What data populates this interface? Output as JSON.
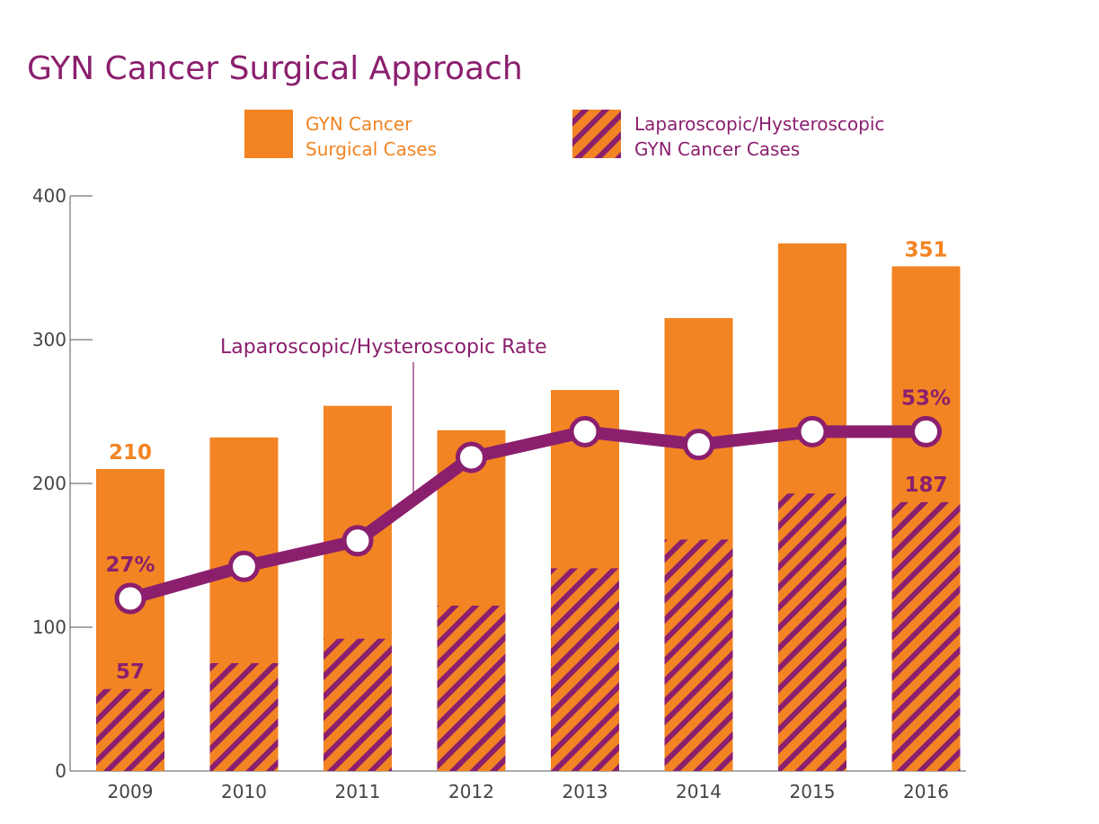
{
  "title": "GYN Cancer Surgical Approach",
  "colors": {
    "orange": "#F28423",
    "purple": "#8B1F6E",
    "axis": "#555555",
    "tick_text": "#444444",
    "marker_fill": "#ffffff"
  },
  "legend": {
    "total": {
      "line1": "GYN Cancer",
      "line2": "Surgical Cases"
    },
    "lap": {
      "line1": "Laparoscopic/Hysteroscopic",
      "line2": "GYN Cancer Cases"
    }
  },
  "rate_annotation": "Laparoscopic/Hysteroscopic Rate",
  "chart_data": {
    "type": "bar",
    "categories": [
      "2009",
      "2010",
      "2011",
      "2012",
      "2013",
      "2014",
      "2015",
      "2016"
    ],
    "ylim": [
      0,
      400
    ],
    "yticks": [
      0,
      100,
      200,
      300,
      400
    ],
    "grid": false,
    "legend_position": "top",
    "series": [
      {
        "name": "GYN Cancer Surgical Cases",
        "values": [
          210,
          232,
          254,
          237,
          265,
          315,
          367,
          351
        ]
      },
      {
        "name": "Laparoscopic/Hysteroscopic GYN Cancer Cases",
        "values": [
          57,
          75,
          92,
          115,
          141,
          161,
          193,
          187
        ]
      }
    ],
    "rate": {
      "name": "Laparoscopic/Hysteroscopic Rate",
      "values": [
        27,
        32,
        36,
        49,
        53,
        51,
        53,
        53
      ],
      "unit": "%"
    },
    "data_labels": {
      "total_first": "210",
      "total_last": "351",
      "lap_first": "57",
      "lap_last": "187",
      "rate_first": "27%",
      "rate_last": "53%"
    }
  }
}
